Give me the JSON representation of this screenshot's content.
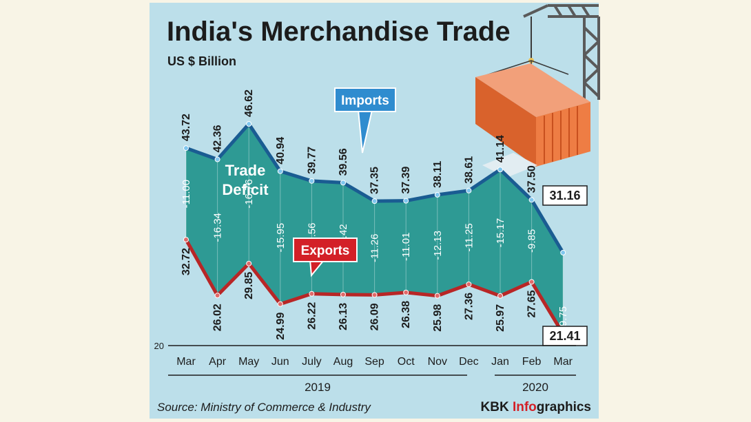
{
  "header": {
    "title": "India's Merchandise Trade",
    "subtitle": "US $ Billion"
  },
  "footer": {
    "source": "Source: Ministry of Commerce & Industry",
    "brand_part1": "KBK ",
    "brand_part2": "Info",
    "brand_part3": "graphics"
  },
  "annotations": {
    "imports_callout": "Imports",
    "exports_callout": "Exports",
    "deficit_line1": "Trade",
    "deficit_line2": "Deficit"
  },
  "colors": {
    "background": "#f8f4e6",
    "panel": "#bcdfea",
    "deficit_fill": "#2e9a94",
    "imports_line": "#1a5c92",
    "exports_line": "#b82626",
    "imports_callout": "#2f8ccf",
    "exports_callout": "#d32027",
    "container": "#e36d36"
  },
  "chart_data": {
    "type": "area",
    "categories": [
      "Mar",
      "Apr",
      "May",
      "Jun",
      "July",
      "Aug",
      "Sep",
      "Oct",
      "Nov",
      "Dec",
      "Jan",
      "Feb",
      "Mar"
    ],
    "years": [
      {
        "label": "2019",
        "from": 0,
        "to": 9
      },
      {
        "label": "2020",
        "from": 10,
        "to": 12
      }
    ],
    "series": [
      {
        "name": "Imports",
        "values": [
          43.72,
          42.36,
          46.62,
          40.94,
          39.77,
          39.56,
          37.35,
          37.39,
          38.11,
          38.61,
          41.14,
          37.5,
          31.16
        ]
      },
      {
        "name": "Exports",
        "values": [
          32.72,
          26.02,
          29.85,
          24.99,
          26.22,
          26.13,
          26.09,
          26.38,
          25.98,
          27.36,
          25.97,
          27.65,
          21.41
        ]
      },
      {
        "name": "Trade Deficit",
        "values": [
          -11.0,
          -16.34,
          -16.76,
          -15.95,
          -13.56,
          -13.42,
          -11.26,
          -11.01,
          -12.13,
          -11.25,
          -15.17,
          -9.85,
          -9.75
        ]
      }
    ],
    "imports_labels": [
      "43.72",
      "42.36",
      "46.62",
      "40.94",
      "39.77",
      "39.56",
      "37.35",
      "37.39",
      "38.11",
      "38.61",
      "41.14",
      "37.50",
      "31.16"
    ],
    "exports_labels": [
      "32.72",
      "26.02",
      "29.85",
      "24.99",
      "26.22",
      "26.13",
      "26.09",
      "26.38",
      "25.98",
      "27.36",
      "25.97",
      "27.65",
      "21.41"
    ],
    "deficit_labels": [
      "-11.00",
      "-16.34",
      "-16.76",
      "-15.95",
      "-13.56",
      "-13.42",
      "-11.26",
      "-11.01",
      "-12.13",
      "-11.25",
      "-15.17",
      "-9.85",
      "-9.75"
    ],
    "y_axis_label": "20",
    "ylim": [
      20,
      48
    ],
    "grid": false,
    "legend": "none"
  }
}
